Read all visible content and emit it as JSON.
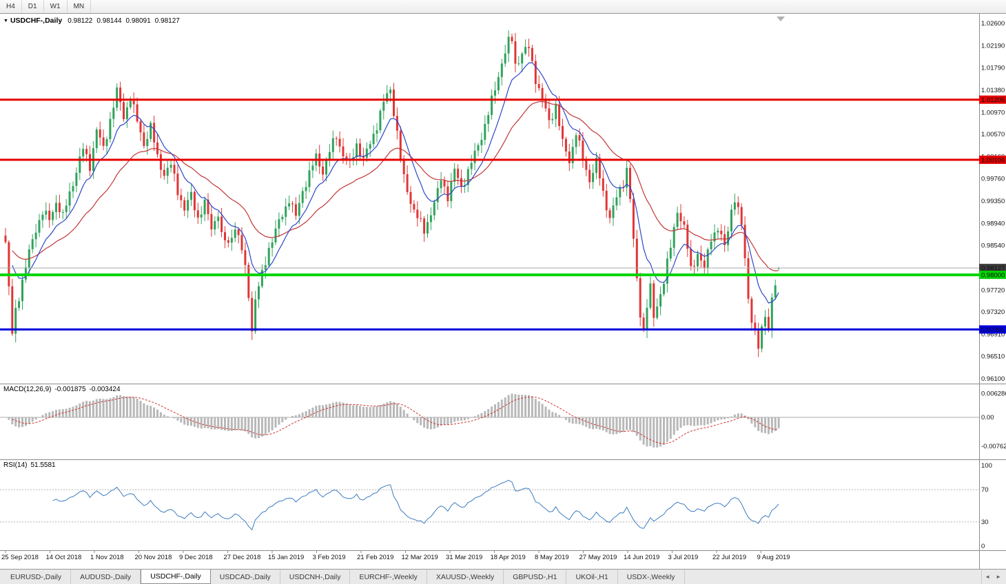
{
  "toolbar": {
    "timeframes": [
      {
        "label": "H4",
        "active": false
      },
      {
        "label": "D1",
        "active": false
      },
      {
        "label": "W1",
        "active": false
      },
      {
        "label": "MN",
        "active": false
      }
    ]
  },
  "symbol_bar": {
    "dropdown_icon": "▼",
    "title": "USDCHF-,Daily",
    "open": "0.98122",
    "high": "0.98144",
    "low": "0.98091",
    "close": "0.98127"
  },
  "price_axis": {
    "labels": [
      "1.02600",
      "1.02190",
      "1.01790",
      "1.01380",
      "1.00970",
      "1.00570",
      "1.00160",
      "0.99760",
      "0.99350",
      "0.98940",
      "0.98540",
      "0.97720",
      "0.97320",
      "0.96910",
      "0.96510",
      "0.96100"
    ],
    "markers": [
      {
        "label": "1.01205",
        "value": 1.01205,
        "bg": "#e60000",
        "fg": "#ffffff"
      },
      {
        "label": "1.00106",
        "value": 1.00106,
        "bg": "#e60000",
        "fg": "#ffffff"
      },
      {
        "label": "0.98127",
        "value": 0.98127,
        "bg": "#3c3c3c",
        "fg": "#ffffff"
      },
      {
        "label": "0.98000",
        "value": 0.98,
        "bg": "#00d400",
        "fg": "#000000"
      },
      {
        "label": "0.97001",
        "value": 0.97001,
        "bg": "#0000dd",
        "fg": "#ffffff"
      }
    ]
  },
  "macd_panel": {
    "label": "MACD(12,26,9)",
    "value_main": "-0.001875",
    "value_signal": "-0.003424",
    "axis_labels": [
      {
        "label": "0.006286",
        "value": 0.006286
      },
      {
        "label": "0.00",
        "value": 0
      },
      {
        "label": "-0.00762",
        "value": -0.00762
      }
    ]
  },
  "rsi_panel": {
    "label": "RSI(14)",
    "value": "51.5581",
    "axis_labels": [
      {
        "label": "100",
        "value": 100
      },
      {
        "label": "70",
        "value": 70
      },
      {
        "label": "30",
        "value": 30
      },
      {
        "label": "0",
        "value": 0
      }
    ],
    "levels": [
      70,
      30
    ]
  },
  "date_axis": [
    "25 Sep 2018",
    "14 Oct 2018",
    "1 Nov 2018",
    "20 Nov 2018",
    "9 Dec 2018",
    "27 Dec 2018",
    "15 Jan 2019",
    "3 Feb 2019",
    "21 Feb 2019",
    "12 Mar 2019",
    "31 Mar 2019",
    "18 Apr 2019",
    "8 May 2019",
    "27 May 2019",
    "14 Jun 2019",
    "3 Jul 2019",
    "22 Jul 2019",
    "9 Aug 2019"
  ],
  "tabs": [
    {
      "label": "EURUSD-,Daily",
      "active": false
    },
    {
      "label": "AUDUSD-,Daily",
      "active": false
    },
    {
      "label": "USDCHF-,Daily",
      "active": true
    },
    {
      "label": "USDCAD-,Daily",
      "active": false
    },
    {
      "label": "USDCNH-,Daily",
      "active": false
    },
    {
      "label": "EURCHF-,Weekly",
      "active": false
    },
    {
      "label": "XAUUSD-,Weekly",
      "active": false
    },
    {
      "label": "GBPUSD-,H1",
      "active": false
    },
    {
      "label": "UKOil-,H1",
      "active": false
    },
    {
      "label": "USDX-,Weekly",
      "active": false
    }
  ],
  "chart_data": {
    "type": "candlestick",
    "symbol": "USDCHF",
    "timeframe": "Daily",
    "title": "USDCHF-,Daily",
    "ohlc_current": {
      "open": 0.98122,
      "high": 0.98144,
      "low": 0.98091,
      "close": 0.98127
    },
    "n_candles": 230,
    "x_range": [
      "25 Sep 2018",
      "16 Aug 2019"
    ],
    "y_range": [
      0.961,
      1.026
    ],
    "grid": false,
    "noise_amp": 0.0011,
    "close_waypoints": [
      [
        0,
        0.986
      ],
      [
        1,
        0.9775
      ],
      [
        2,
        0.969
      ],
      [
        3,
        0.9735
      ],
      [
        5,
        0.979
      ],
      [
        7,
        0.984
      ],
      [
        9,
        0.9885
      ],
      [
        11,
        0.9915
      ],
      [
        13,
        0.99
      ],
      [
        15,
        0.9935
      ],
      [
        17,
        0.9905
      ],
      [
        19,
        0.995
      ],
      [
        21,
        0.999
      ],
      [
        23,
        1.003
      ],
      [
        25,
        1.0
      ],
      [
        27,
        1.0065
      ],
      [
        29,
        1.003
      ],
      [
        31,
        1.0085
      ],
      [
        33,
        1.0135
      ],
      [
        35,
        1.009
      ],
      [
        37,
        1.0125
      ],
      [
        39,
        1.008
      ],
      [
        41,
        1.004
      ],
      [
        43,
        1.007
      ],
      [
        45,
        1.0015
      ],
      [
        47,
        0.9985
      ],
      [
        49,
        1.0
      ],
      [
        51,
        0.9955
      ],
      [
        53,
        0.992
      ],
      [
        55,
        0.9945
      ],
      [
        57,
        0.9905
      ],
      [
        59,
        0.993
      ],
      [
        61,
        0.9885
      ],
      [
        63,
        0.9915
      ],
      [
        64,
        0.987
      ],
      [
        66,
        0.9855
      ],
      [
        68,
        0.989
      ],
      [
        70,
        0.9845
      ],
      [
        71,
        0.981
      ],
      [
        72,
        0.9765
      ],
      [
        73,
        0.97
      ],
      [
        74,
        0.9755
      ],
      [
        76,
        0.98
      ],
      [
        78,
        0.985
      ],
      [
        80,
        0.988
      ],
      [
        82,
        0.991
      ],
      [
        84,
        0.994
      ],
      [
        86,
        0.9905
      ],
      [
        88,
        0.9955
      ],
      [
        90,
        0.9985
      ],
      [
        92,
        1.0015
      ],
      [
        94,
        0.999
      ],
      [
        96,
        1.0025
      ],
      [
        98,
        1.0055
      ],
      [
        100,
        1.002
      ],
      [
        102,
        1.0
      ],
      [
        104,
        1.004
      ],
      [
        106,
        1.001
      ],
      [
        108,
        1.004
      ],
      [
        110,
        1.0075
      ],
      [
        112,
        1.0115
      ],
      [
        114,
        1.014
      ],
      [
        115,
        1.01
      ],
      [
        116,
        1.006
      ],
      [
        117,
        1.001
      ],
      [
        118,
        0.9975
      ],
      [
        120,
        0.9935
      ],
      [
        122,
        0.9905
      ],
      [
        124,
        0.988
      ],
      [
        126,
        0.9915
      ],
      [
        128,
        0.995
      ],
      [
        129,
        0.9975
      ],
      [
        131,
        0.9945
      ],
      [
        133,
        0.999
      ],
      [
        135,
        0.996
      ],
      [
        137,
        0.999
      ],
      [
        139,
        1.002
      ],
      [
        141,
        1.0055
      ],
      [
        143,
        1.0095
      ],
      [
        145,
        1.014
      ],
      [
        147,
        1.019
      ],
      [
        149,
        1.0225
      ],
      [
        150,
        1.023
      ],
      [
        151,
        1.0185
      ],
      [
        153,
        1.0205
      ],
      [
        155,
        1.0215
      ],
      [
        157,
        1.016
      ],
      [
        159,
        1.012
      ],
      [
        161,
        1.008
      ],
      [
        163,
        1.011
      ],
      [
        165,
        1.004
      ],
      [
        167,
        1.001
      ],
      [
        169,
        1.006
      ],
      [
        171,
        1.001
      ],
      [
        173,
        0.9975
      ],
      [
        175,
        1.0005
      ],
      [
        177,
        0.995
      ],
      [
        179,
        0.9905
      ],
      [
        181,
        0.994
      ],
      [
        183,
        0.997
      ],
      [
        184,
        0.9995
      ],
      [
        185,
        0.994
      ],
      [
        186,
        0.986
      ],
      [
        187,
        0.979
      ],
      [
        188,
        0.973
      ],
      [
        189,
        0.97
      ],
      [
        190,
        0.9745
      ],
      [
        191,
        0.9775
      ],
      [
        192,
        0.972
      ],
      [
        193,
        0.9745
      ],
      [
        195,
        0.979
      ],
      [
        197,
        0.985
      ],
      [
        199,
        0.992
      ],
      [
        201,
        0.9885
      ],
      [
        203,
        0.981
      ],
      [
        205,
        0.984
      ],
      [
        207,
        0.981
      ],
      [
        209,
        0.987
      ],
      [
        211,
        0.9885
      ],
      [
        213,
        0.985
      ],
      [
        215,
        0.992
      ],
      [
        216,
        0.994
      ],
      [
        218,
        0.989
      ],
      [
        219,
        0.983
      ],
      [
        220,
        0.976
      ],
      [
        221,
        0.972
      ],
      [
        222,
        0.969
      ],
      [
        223,
        0.9665
      ],
      [
        224,
        0.97
      ],
      [
        225,
        0.973
      ],
      [
        226,
        0.9705
      ],
      [
        227,
        0.9755
      ],
      [
        228,
        0.978
      ],
      [
        229,
        0.9813
      ]
    ],
    "horizontal_lines": [
      {
        "value": 1.01205,
        "color": "#e60000",
        "width": 3,
        "label": "1.01205"
      },
      {
        "value": 1.00106,
        "color": "#e60000",
        "width": 3,
        "label": "1.00106"
      },
      {
        "value": 0.98,
        "color": "#00d400",
        "width": 4,
        "label": "0.98000"
      },
      {
        "value": 0.97001,
        "color": "#0000dd",
        "width": 3,
        "label": "0.97001"
      }
    ],
    "current_price_line": {
      "value": 0.98127,
      "color": "#aaaaaa"
    },
    "colors": {
      "bull": "#2fa35c",
      "bear": "#e03535",
      "ma_fast": "#2b46c8",
      "ma_slow": "#c23535",
      "macd_hist": "#b8b8b8",
      "macd_signal": "#cc3333",
      "rsi": "#3b7bbf"
    },
    "indicators": {
      "ma_fast_period": 10,
      "ma_slow_period": 30,
      "macd": [
        12,
        26,
        9
      ],
      "rsi_period": 14
    }
  }
}
